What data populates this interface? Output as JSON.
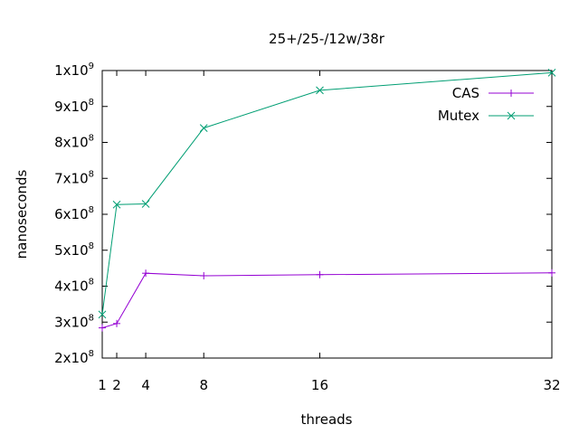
{
  "chart_data": {
    "type": "line",
    "title": "25+/25-/12w/38r",
    "xlabel": "threads",
    "ylabel": "nanoseconds",
    "x": [
      1,
      2,
      4,
      8,
      16,
      32
    ],
    "xticks": [
      "1",
      "2",
      "4",
      "8",
      "16",
      "32"
    ],
    "xlim": [
      1,
      32
    ],
    "ylim": [
      200000000,
      1000000000
    ],
    "yticks": [
      {
        "base": "2x10",
        "exp": "8",
        "value": 200000000
      },
      {
        "base": "3x10",
        "exp": "8",
        "value": 300000000
      },
      {
        "base": "4x10",
        "exp": "8",
        "value": 400000000
      },
      {
        "base": "5x10",
        "exp": "8",
        "value": 500000000
      },
      {
        "base": "6x10",
        "exp": "8",
        "value": 600000000
      },
      {
        "base": "7x10",
        "exp": "8",
        "value": 700000000
      },
      {
        "base": "8x10",
        "exp": "8",
        "value": 800000000
      },
      {
        "base": "9x10",
        "exp": "8",
        "value": 900000000
      },
      {
        "base": "1x10",
        "exp": "9",
        "value": 1000000000
      }
    ],
    "grid": false,
    "legend_position": "top-right",
    "series": [
      {
        "name": "CAS",
        "color": "#9400d3",
        "marker": "plus",
        "values": [
          284000000,
          296000000,
          436000000,
          429000000,
          432000000,
          437000000
        ]
      },
      {
        "name": "Mutex",
        "color": "#009e73",
        "marker": "cross",
        "values": [
          321000000,
          627000000,
          629000000,
          840000000,
          945000000,
          994000000
        ]
      }
    ]
  }
}
